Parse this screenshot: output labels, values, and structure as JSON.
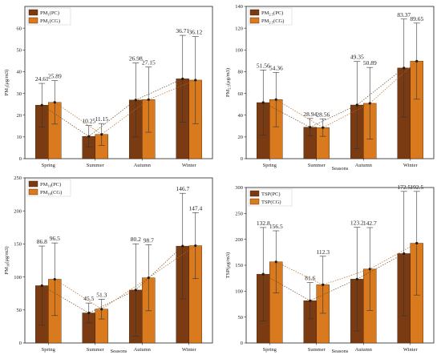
{
  "chart_data": [
    {
      "type": "bar",
      "categories": [
        "Spring",
        "Summer",
        "Autumn",
        "Winter"
      ],
      "xlabel": "",
      "ylabel": "PM",
      "ylabel_sub": "1",
      "ylabel_unit": "(μg/m3)",
      "ylim": [
        0,
        70
      ],
      "yticks": [
        0,
        10,
        20,
        30,
        40,
        50,
        60
      ],
      "legend_position": "top-left",
      "series": [
        {
          "name": "PM",
          "name_sub": "1",
          "name_suffix": "(PC)",
          "color": "#7a3a12",
          "values": [
            24.61,
            10.25,
            26.98,
            36.71
          ],
          "err": [
            10,
            5,
            17,
            20
          ],
          "labels": [
            "24.61",
            "10.25",
            "26.98",
            "36.71"
          ]
        },
        {
          "name": "PM",
          "name_sub": "1",
          "name_suffix": "(CG)",
          "color": "#d97a1e",
          "values": [
            25.89,
            11.15,
            27.15,
            36.12
          ],
          "err": [
            10,
            5,
            15,
            20
          ],
          "labels": [
            "25.89",
            "11.15",
            "27.15",
            "36.12"
          ]
        }
      ]
    },
    {
      "type": "bar",
      "categories": [
        "Spring",
        "Summer",
        "Autumn",
        "Winter"
      ],
      "xlabel": "Seasons",
      "ylabel": "PM",
      "ylabel_sub": "2.5",
      "ylabel_unit": "(μg/m3)",
      "ylim": [
        0,
        140
      ],
      "yticks": [
        0,
        20,
        40,
        60,
        80,
        100,
        120,
        140
      ],
      "legend_position": "top-left",
      "series": [
        {
          "name": "PM",
          "name_sub": "2.5",
          "name_suffix": "(PC)",
          "color": "#7a3a12",
          "values": [
            51.56,
            28.94,
            49.35,
            83.37
          ],
          "err": [
            30,
            8,
            40,
            45
          ],
          "labels": [
            "51.56",
            "28.94",
            "49.35",
            "83.37"
          ]
        },
        {
          "name": "PM",
          "name_sub": "2.5",
          "name_suffix": "(CG)",
          "color": "#d97a1e",
          "values": [
            54.36,
            28.56,
            50.89,
            89.65
          ],
          "err": [
            25,
            8,
            33,
            35
          ],
          "labels": [
            "54.36",
            "28.56",
            "50.89",
            "89.65"
          ]
        }
      ]
    },
    {
      "type": "bar",
      "categories": [
        "Spring",
        "Summer",
        "Autumn",
        "Winter"
      ],
      "xlabel": "Seasons",
      "ylabel": "PM",
      "ylabel_sub": "10",
      "ylabel_unit": "(μg/m3)",
      "ylim": [
        0,
        250
      ],
      "yticks": [
        0,
        50,
        100,
        150,
        200,
        250
      ],
      "legend_position": "top-left",
      "series": [
        {
          "name": "PM",
          "name_sub": "10",
          "name_suffix": "(PC)",
          "color": "#7a3a12",
          "values": [
            86.8,
            45.5,
            80.2,
            146.7
          ],
          "err": [
            60,
            15,
            70,
            80
          ],
          "labels": [
            "86.8",
            "45.5",
            "80.2",
            "146.7"
          ]
        },
        {
          "name": "PM",
          "name_sub": "10",
          "name_suffix": "(CG)",
          "color": "#d97a1e",
          "values": [
            96.5,
            51.3,
            98.7,
            147.4
          ],
          "err": [
            55,
            15,
            50,
            50
          ],
          "labels": [
            "96.5",
            "51.3",
            "98.7",
            "147.4"
          ]
        }
      ]
    },
    {
      "type": "bar",
      "categories": [
        "Spring",
        "Summer",
        "Autumn",
        "Winter"
      ],
      "xlabel": "Seasons",
      "ylabel": "TSP",
      "ylabel_sub": "",
      "ylabel_unit": "(μg/m3)",
      "ylim": [
        0,
        300
      ],
      "yticks": [
        0,
        50,
        100,
        150,
        200,
        250,
        300
      ],
      "legend_position": "top-left",
      "series": [
        {
          "name": "TSP",
          "name_sub": "",
          "name_suffix": "(PC)",
          "color": "#7a3a12",
          "values": [
            132.8,
            81.6,
            123.2,
            172.5
          ],
          "err": [
            90,
            35,
            100,
            120
          ],
          "labels": [
            "132.8",
            "81.6",
            "123.2",
            "172.5"
          ]
        },
        {
          "name": "TSP",
          "name_sub": "",
          "name_suffix": "(CG)",
          "color": "#d97a1e",
          "values": [
            156.5,
            112.3,
            142.7,
            192.5
          ],
          "err": [
            60,
            55,
            80,
            100
          ],
          "labels": [
            "156.5",
            "112.3",
            "142.7",
            "192.5"
          ]
        }
      ]
    }
  ]
}
